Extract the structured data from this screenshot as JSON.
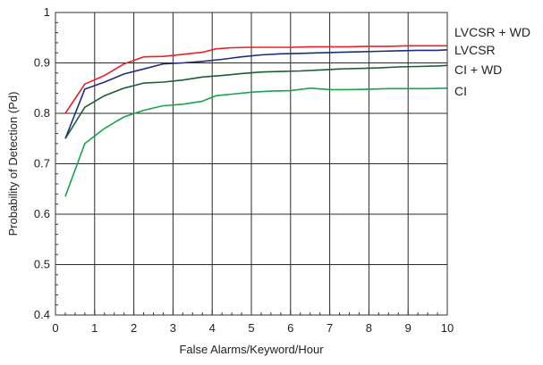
{
  "chart_data": {
    "type": "line",
    "title": "",
    "xlabel": "False Alarms/Keyword/Hour",
    "ylabel": "Probability of Detection (Pd)",
    "xlim": [
      0,
      10
    ],
    "ylim": [
      0.4,
      1.0
    ],
    "x_ticks": [
      0,
      1,
      2,
      3,
      4,
      5,
      6,
      7,
      8,
      9,
      10
    ],
    "y_ticks": [
      0.4,
      0.5,
      0.6,
      0.7,
      0.8,
      0.9,
      1.0
    ],
    "y_tick_labels": [
      "0.4",
      "0.5",
      "0.6",
      "0.7",
      "0.8",
      "0.9",
      "1"
    ],
    "grid": true,
    "legend_placement": "right (labels at line ends)",
    "series": [
      {
        "name": "LVCSR + WD",
        "color": "#e8202a",
        "x": [
          0.25,
          0.75,
          1.25,
          1.75,
          2.25,
          2.75,
          3.25,
          3.75,
          4.1,
          4.5,
          5,
          5.5,
          6,
          6.5,
          7,
          7.5,
          8,
          8.5,
          9,
          9.5,
          10
        ],
        "y": [
          0.8,
          0.858,
          0.875,
          0.898,
          0.912,
          0.913,
          0.917,
          0.921,
          0.928,
          0.93,
          0.931,
          0.931,
          0.931,
          0.932,
          0.932,
          0.932,
          0.933,
          0.933,
          0.934,
          0.934,
          0.934
        ]
      },
      {
        "name": "LVCSR",
        "color": "#1f2d7a",
        "x": [
          0.25,
          0.75,
          1.25,
          1.75,
          2.25,
          2.75,
          3.25,
          3.75,
          4.25,
          4.75,
          5.25,
          5.75,
          6.25,
          6.75,
          7.25,
          7.75,
          8.25,
          8.75,
          9.25,
          9.75,
          10
        ],
        "y": [
          0.75,
          0.848,
          0.862,
          0.878,
          0.888,
          0.898,
          0.9,
          0.903,
          0.907,
          0.912,
          0.916,
          0.918,
          0.919,
          0.92,
          0.921,
          0.922,
          0.923,
          0.924,
          0.925,
          0.925,
          0.926
        ]
      },
      {
        "name": "CI + WD",
        "color": "#1c5e34",
        "x": [
          0.25,
          0.75,
          1.25,
          1.75,
          2.25,
          2.75,
          3.25,
          3.75,
          4.25,
          4.75,
          5.25,
          5.75,
          6.25,
          6.75,
          7.25,
          7.75,
          8.25,
          8.75,
          9.25,
          9.75,
          10
        ],
        "y": [
          0.75,
          0.812,
          0.835,
          0.85,
          0.86,
          0.862,
          0.866,
          0.872,
          0.875,
          0.879,
          0.882,
          0.883,
          0.884,
          0.886,
          0.888,
          0.889,
          0.89,
          0.892,
          0.893,
          0.894,
          0.895
        ]
      },
      {
        "name": "CI",
        "color": "#1aa34a",
        "x": [
          0.25,
          0.75,
          1.25,
          1.75,
          2.25,
          2.75,
          3.25,
          3.75,
          4.1,
          4.5,
          5,
          5.5,
          6,
          6.5,
          7,
          7.5,
          8,
          8.5,
          9,
          9.5,
          10
        ],
        "y": [
          0.635,
          0.74,
          0.77,
          0.793,
          0.806,
          0.815,
          0.818,
          0.824,
          0.835,
          0.838,
          0.842,
          0.844,
          0.845,
          0.85,
          0.847,
          0.847,
          0.848,
          0.849,
          0.849,
          0.849,
          0.85
        ]
      }
    ]
  }
}
